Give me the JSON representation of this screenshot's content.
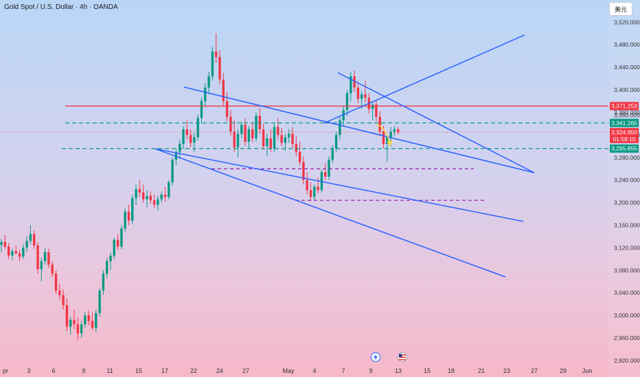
{
  "header": {
    "title": "Gold Spot / U.S. Dollar · 4h · OANDA",
    "currency_label": "美元"
  },
  "colors": {
    "up": "#089981",
    "down": "#f23645",
    "channel": "#2962ff",
    "resistance": "#f23645",
    "green_dash": "#089981",
    "purple_dash": "#9c27b0",
    "forecast": "#f5d547"
  },
  "icons": [
    "lightning-icon",
    "us-flag-icon"
  ],
  "chart_data": {
    "type": "candlestick",
    "title": "Gold Spot / U.S. Dollar · 4h · OANDA",
    "y_ticks": [
      3520,
      3480,
      3440,
      3400,
      3360,
      3320,
      3280,
      3240,
      3200,
      3160,
      3120,
      3080,
      3040,
      3000,
      2960,
      2920
    ],
    "y_tick_labels": [
      "3,520.000",
      "3,480.000",
      "3,440.000",
      "3,400.000",
      "3,360.000",
      "3,320.000",
      "3,280.000",
      "3,240.000",
      "3,200.000",
      "3,160.000",
      "3,120.000",
      "3,080.000",
      "3,040.000",
      "3,000.000",
      "2,960.000",
      "2,920.000"
    ],
    "ylim": [
      2915,
      3535
    ],
    "x_tick_labels": [
      "pr",
      "3",
      "6",
      "9",
      "11",
      "15",
      "17",
      "22",
      "24",
      "27",
      "May",
      "4",
      "7",
      "9",
      "13",
      "15",
      "18",
      "21",
      "23",
      "27",
      "29",
      "Jun"
    ],
    "price_labels": [
      {
        "value": 3371.253,
        "text": "3,371.253",
        "color": "#f23645"
      },
      {
        "value": 3341.265,
        "text": "3,341.265",
        "color": "#089981"
      },
      {
        "value": 3324.95,
        "text": "3,324.950",
        "color": "#f23645",
        "countdown": "01:58:10"
      },
      {
        "value": 3295.855,
        "text": "3,295.855",
        "color": "#089981"
      }
    ],
    "hidden_label": "3,360.000",
    "candles_ohlc": [
      [
        3125,
        3135,
        3112,
        3130
      ],
      [
        3130,
        3142,
        3118,
        3122
      ],
      [
        3122,
        3128,
        3100,
        3106
      ],
      [
        3106,
        3118,
        3098,
        3114
      ],
      [
        3114,
        3124,
        3108,
        3110
      ],
      [
        3110,
        3116,
        3096,
        3104
      ],
      [
        3104,
        3126,
        3100,
        3120
      ],
      [
        3120,
        3140,
        3112,
        3132
      ],
      [
        3132,
        3160,
        3126,
        3144
      ],
      [
        3144,
        3150,
        3118,
        3124
      ],
      [
        3124,
        3130,
        3074,
        3082
      ],
      [
        3082,
        3102,
        3060,
        3096
      ],
      [
        3096,
        3120,
        3090,
        3112
      ],
      [
        3112,
        3118,
        3084,
        3090
      ],
      [
        3090,
        3096,
        3068,
        3074
      ],
      [
        3074,
        3080,
        3038,
        3044
      ],
      [
        3044,
        3056,
        3028,
        3036
      ],
      [
        3036,
        3046,
        3010,
        3018
      ],
      [
        3018,
        3030,
        2972,
        2980
      ],
      [
        2980,
        2998,
        2966,
        2992
      ],
      [
        2992,
        3010,
        2976,
        2984
      ],
      [
        2984,
        2996,
        2956,
        2968
      ],
      [
        2968,
        2990,
        2960,
        2984
      ],
      [
        2984,
        3006,
        2978,
        3000
      ],
      [
        3000,
        3008,
        2982,
        2990
      ],
      [
        2990,
        3004,
        2974,
        2978
      ],
      [
        2978,
        3010,
        2970,
        3004
      ],
      [
        3004,
        3048,
        2998,
        3044
      ],
      [
        3044,
        3080,
        3036,
        3074
      ],
      [
        3074,
        3102,
        3066,
        3096
      ],
      [
        3096,
        3112,
        3080,
        3106
      ],
      [
        3106,
        3138,
        3100,
        3134
      ],
      [
        3134,
        3144,
        3116,
        3122
      ],
      [
        3122,
        3160,
        3118,
        3154
      ],
      [
        3154,
        3190,
        3148,
        3184
      ],
      [
        3184,
        3196,
        3160,
        3168
      ],
      [
        3168,
        3214,
        3162,
        3208
      ],
      [
        3208,
        3232,
        3196,
        3224
      ],
      [
        3224,
        3240,
        3210,
        3218
      ],
      [
        3218,
        3232,
        3200,
        3206
      ],
      [
        3206,
        3222,
        3192,
        3212
      ],
      [
        3212,
        3220,
        3198,
        3204
      ],
      [
        3204,
        3214,
        3190,
        3196
      ],
      [
        3196,
        3212,
        3186,
        3206
      ],
      [
        3206,
        3220,
        3200,
        3214
      ],
      [
        3214,
        3228,
        3202,
        3210
      ],
      [
        3210,
        3240,
        3206,
        3236
      ],
      [
        3236,
        3280,
        3230,
        3276
      ],
      [
        3276,
        3296,
        3266,
        3290
      ],
      [
        3290,
        3312,
        3278,
        3304
      ],
      [
        3304,
        3336,
        3296,
        3330
      ],
      [
        3330,
        3346,
        3312,
        3320
      ],
      [
        3320,
        3330,
        3298,
        3306
      ],
      [
        3306,
        3324,
        3290,
        3316
      ],
      [
        3316,
        3356,
        3310,
        3350
      ],
      [
        3350,
        3386,
        3340,
        3380
      ],
      [
        3380,
        3412,
        3370,
        3404
      ],
      [
        3404,
        3432,
        3392,
        3424
      ],
      [
        3424,
        3476,
        3416,
        3468
      ],
      [
        3468,
        3500,
        3448,
        3458
      ],
      [
        3458,
        3470,
        3410,
        3418
      ],
      [
        3418,
        3430,
        3372,
        3380
      ],
      [
        3380,
        3396,
        3344,
        3352
      ],
      [
        3352,
        3364,
        3318,
        3326
      ],
      [
        3326,
        3346,
        3290,
        3298
      ],
      [
        3298,
        3330,
        3280,
        3322
      ],
      [
        3322,
        3344,
        3314,
        3338
      ],
      [
        3338,
        3350,
        3300,
        3308
      ],
      [
        3308,
        3336,
        3296,
        3330
      ],
      [
        3330,
        3342,
        3306,
        3314
      ],
      [
        3314,
        3360,
        3308,
        3354
      ],
      [
        3354,
        3368,
        3322,
        3330
      ],
      [
        3330,
        3340,
        3294,
        3300
      ],
      [
        3300,
        3322,
        3282,
        3314
      ],
      [
        3314,
        3330,
        3290,
        3296
      ],
      [
        3296,
        3340,
        3290,
        3334
      ],
      [
        3334,
        3350,
        3312,
        3320
      ],
      [
        3320,
        3332,
        3300,
        3306
      ],
      [
        3306,
        3322,
        3292,
        3316
      ],
      [
        3316,
        3330,
        3306,
        3322
      ],
      [
        3322,
        3334,
        3296,
        3304
      ],
      [
        3304,
        3318,
        3282,
        3290
      ],
      [
        3290,
        3308,
        3266,
        3272
      ],
      [
        3272,
        3282,
        3232,
        3240
      ],
      [
        3240,
        3254,
        3214,
        3222
      ],
      [
        3222,
        3236,
        3202,
        3210
      ],
      [
        3210,
        3232,
        3204,
        3228
      ],
      [
        3228,
        3244,
        3216,
        3222
      ],
      [
        3222,
        3258,
        3218,
        3254
      ],
      [
        3254,
        3270,
        3240,
        3246
      ],
      [
        3246,
        3282,
        3240,
        3276
      ],
      [
        3276,
        3302,
        3270,
        3296
      ],
      [
        3296,
        3326,
        3290,
        3320
      ],
      [
        3320,
        3352,
        3312,
        3346
      ],
      [
        3346,
        3372,
        3336,
        3364
      ],
      [
        3364,
        3400,
        3354,
        3394
      ],
      [
        3394,
        3432,
        3380,
        3424
      ],
      [
        3424,
        3434,
        3396,
        3404
      ],
      [
        3404,
        3414,
        3376,
        3384
      ],
      [
        3384,
        3398,
        3366,
        3392
      ],
      [
        3392,
        3416,
        3378,
        3386
      ],
      [
        3386,
        3394,
        3358,
        3366
      ],
      [
        3366,
        3380,
        3346,
        3374
      ],
      [
        3374,
        3382,
        3344,
        3352
      ],
      [
        3352,
        3362,
        3318,
        3326
      ],
      [
        3326,
        3336,
        3296,
        3304
      ],
      [
        3304,
        3320,
        3272,
        3316
      ],
      [
        3316,
        3334,
        3300,
        3326
      ],
      [
        3326,
        3336,
        3318,
        3330
      ],
      [
        3330,
        3334,
        3320,
        3325
      ]
    ],
    "lines": {
      "upper_channel": {
        "x": [
          "Apr 20",
          "May 26"
        ],
        "y": [
          3410,
          3250
        ]
      },
      "middle_channel": {
        "x": [
          "Apr 16",
          "May 26"
        ],
        "y": [
          3295,
          3162
        ]
      },
      "lower_channel": {
        "x": [
          "Apr 16",
          "May 25"
        ],
        "y": [
          3290,
          3062
        ]
      },
      "rising_line": {
        "x": [
          "May 6",
          "May 25"
        ],
        "y": [
          3345,
          3500
        ]
      },
      "descending_line": {
        "x": [
          "May 7",
          "May 26"
        ],
        "y": [
          3432,
          3250
        ]
      }
    },
    "levels": {
      "resistance": 3371.253,
      "green_dashed": [
        3341.265,
        3295.855
      ],
      "purple_dashed": [
        3260,
        3204
      ]
    }
  }
}
